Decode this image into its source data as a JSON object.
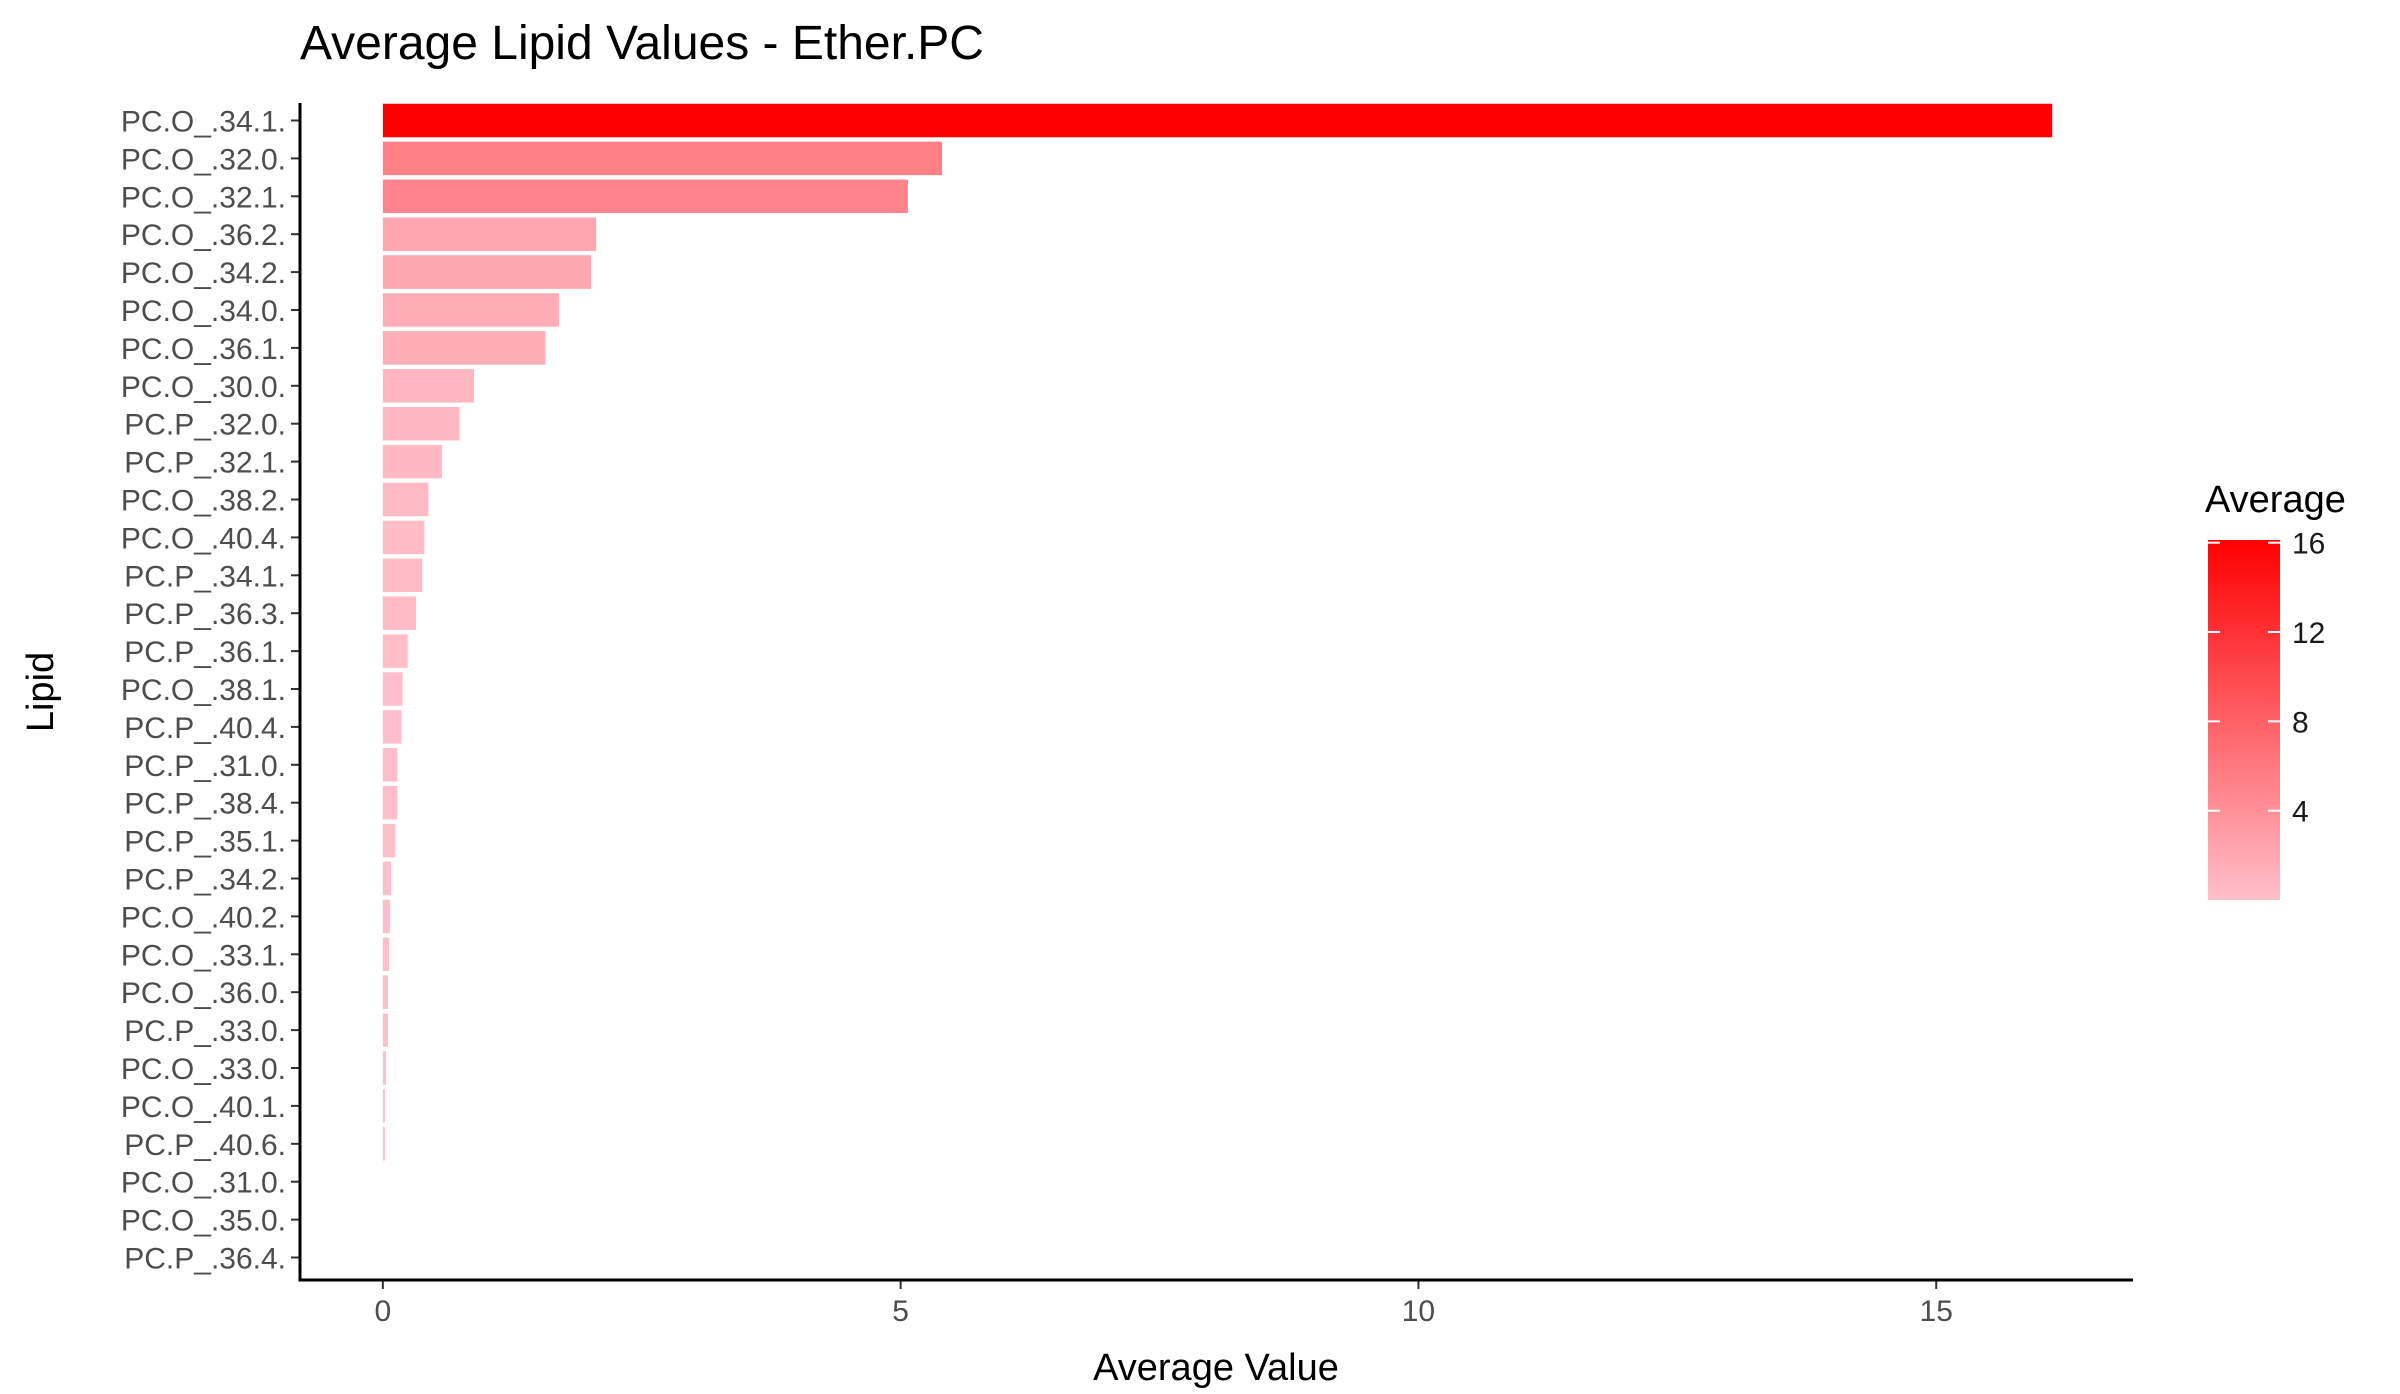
{
  "chart_data": {
    "type": "bar",
    "orientation": "horizontal",
    "title": "Average Lipid Values - Ether.PC",
    "xlabel": "Average Value",
    "ylabel": "Lipid",
    "xlim": [
      -0.8,
      16.9
    ],
    "x_ticks": [
      0,
      5,
      10,
      15
    ],
    "categories": [
      "PC.O_.34.1.",
      "PC.O_.32.0.",
      "PC.O_.32.1.",
      "PC.O_.36.2.",
      "PC.O_.34.2.",
      "PC.O_.34.0.",
      "PC.O_.36.1.",
      "PC.O_.30.0.",
      "PC.P_.32.0.",
      "PC.P_.32.1.",
      "PC.O_.38.2.",
      "PC.O_.40.4.",
      "PC.P_.34.1.",
      "PC.P_.36.3.",
      "PC.P_.36.1.",
      "PC.O_.38.1.",
      "PC.P_.40.4.",
      "PC.P_.31.0.",
      "PC.P_.38.4.",
      "PC.P_.35.1.",
      "PC.P_.34.2.",
      "PC.O_.40.2.",
      "PC.O_.33.1.",
      "PC.O_.36.0.",
      "PC.P_.33.0.",
      "PC.O_.33.0.",
      "PC.O_.40.1.",
      "PC.P_.40.6.",
      "PC.O_.31.0.",
      "PC.O_.35.0.",
      "PC.P_.36.4."
    ],
    "values": [
      16.12,
      5.4,
      5.07,
      2.06,
      2.01,
      1.7,
      1.57,
      0.88,
      0.74,
      0.57,
      0.44,
      0.4,
      0.38,
      0.32,
      0.24,
      0.19,
      0.18,
      0.14,
      0.14,
      0.12,
      0.08,
      0.07,
      0.06,
      0.05,
      0.05,
      0.03,
      0.02,
      0.02,
      0.0,
      0.0,
      0.0
    ],
    "legend": {
      "title": "Average",
      "ticks": [
        "4",
        "8",
        "12",
        "16"
      ],
      "tick_values": [
        4,
        8,
        12,
        16
      ],
      "range": [
        0.0,
        16.12
      ],
      "low_color": "#ffc0cb",
      "high_color": "#ff0000",
      "position": "right"
    },
    "grid": false
  }
}
